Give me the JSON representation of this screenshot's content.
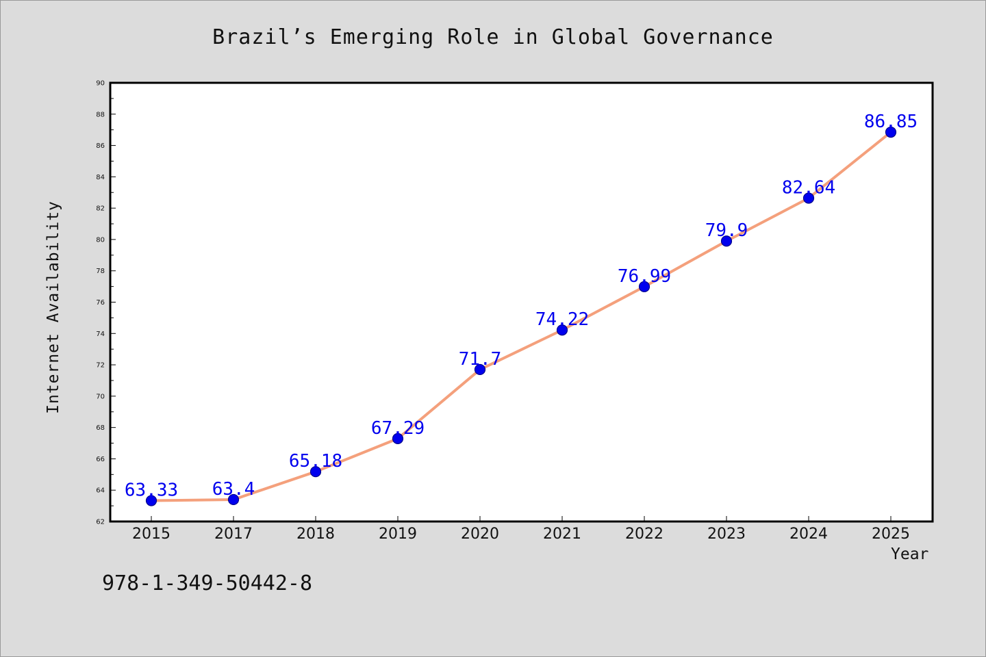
{
  "title": "Brazil’s Emerging Role in Global Governance",
  "footnote": "978-1-349-50442-8",
  "chart_data": {
    "type": "line",
    "title": "Brazil’s Emerging Role in Global Governance",
    "xlabel": "Year",
    "ylabel": "Internet Availability",
    "categories": [
      "2015",
      "2017",
      "2018",
      "2019",
      "2020",
      "2021",
      "2022",
      "2023",
      "2024",
      "2025"
    ],
    "values": [
      63.33,
      63.4,
      65.18,
      67.29,
      71.7,
      74.22,
      76.99,
      79.9,
      82.64,
      86.85
    ],
    "data_labels": [
      "63.33",
      "63.4",
      "65.18",
      "67.29",
      "71.7",
      "74.22",
      "76.99",
      "79.9",
      "82.64",
      "86.85"
    ],
    "ylim": [
      62,
      90
    ],
    "yticks": [
      62,
      64,
      66,
      68,
      70,
      72,
      74,
      76,
      78,
      80,
      82,
      84,
      86,
      88,
      90
    ],
    "grid": false,
    "legend": "none",
    "colors": {
      "line": "#f4a07c",
      "marker": "#0000ee",
      "marker_edge": "#00008a",
      "data_label": "#0000ee",
      "plot_background": "#ffffff",
      "figure_background": "#dcdcdc"
    }
  }
}
